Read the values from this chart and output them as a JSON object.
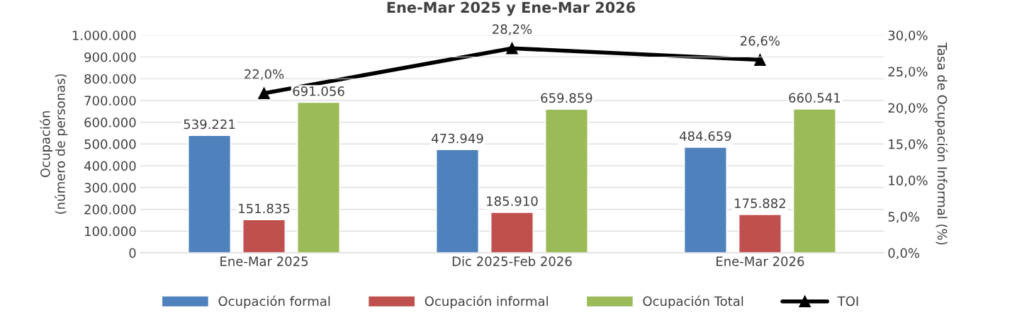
{
  "chart_data": {
    "type": "bar",
    "title": "Ene-Mar 2025 y Ene-Mar 2026",
    "categories": [
      "Ene-Mar 2025",
      "Dic 2025-Feb 2026",
      "Ene-Mar 2026"
    ],
    "ylabel": "Ocupación\n(número de personas)",
    "y2label": "Tasa de Ocupación Informal (%)",
    "series": [
      {
        "name": "Ocupación formal",
        "color": "#4f81bd",
        "values": [
          539221,
          473949,
          484659
        ],
        "value_labels": [
          "539.221",
          "473.949",
          "484.659"
        ]
      },
      {
        "name": "Ocupación informal",
        "color": "#c0504d",
        "values": [
          151835,
          185910,
          175882
        ],
        "value_labels": [
          "151.835",
          "185.910",
          "175.882"
        ]
      },
      {
        "name": "Ocupación Total",
        "color": "#9bbb59",
        "values": [
          691056,
          659859,
          660541
        ],
        "value_labels": [
          "691.056",
          "659.859",
          "660.541"
        ]
      },
      {
        "name": "TOI",
        "type": "line",
        "axis": "y2",
        "color": "#000000",
        "marker": "triangle",
        "values": [
          22.0,
          28.2,
          26.6
        ],
        "value_labels": [
          "22,0%",
          "28,2%",
          "26,6%"
        ]
      }
    ],
    "ylim": [
      0,
      1000000
    ],
    "yticks": [
      {
        "value": 0,
        "label": "0"
      },
      {
        "value": 100000,
        "label": "100.000"
      },
      {
        "value": 200000,
        "label": "200.000"
      },
      {
        "value": 300000,
        "label": "300.000"
      },
      {
        "value": 400000,
        "label": "400.000"
      },
      {
        "value": 500000,
        "label": "500.000"
      },
      {
        "value": 600000,
        "label": "600.000"
      },
      {
        "value": 700000,
        "label": "700.000"
      },
      {
        "value": 800000,
        "label": "800.000"
      },
      {
        "value": 900000,
        "label": "900.000"
      },
      {
        "value": 1000000,
        "label": "1.000.000"
      }
    ],
    "y2lim": [
      0,
      30
    ],
    "y2ticks": [
      {
        "value": 0,
        "label": "0,0%"
      },
      {
        "value": 5,
        "label": "5,0%"
      },
      {
        "value": 10,
        "label": "10,0%"
      },
      {
        "value": 15,
        "label": "15,0%"
      },
      {
        "value": 20,
        "label": "20,0%"
      },
      {
        "value": 25,
        "label": "25,0%"
      },
      {
        "value": 30,
        "label": "30,0%"
      }
    ],
    "grid": "y",
    "legend": "bottom"
  }
}
